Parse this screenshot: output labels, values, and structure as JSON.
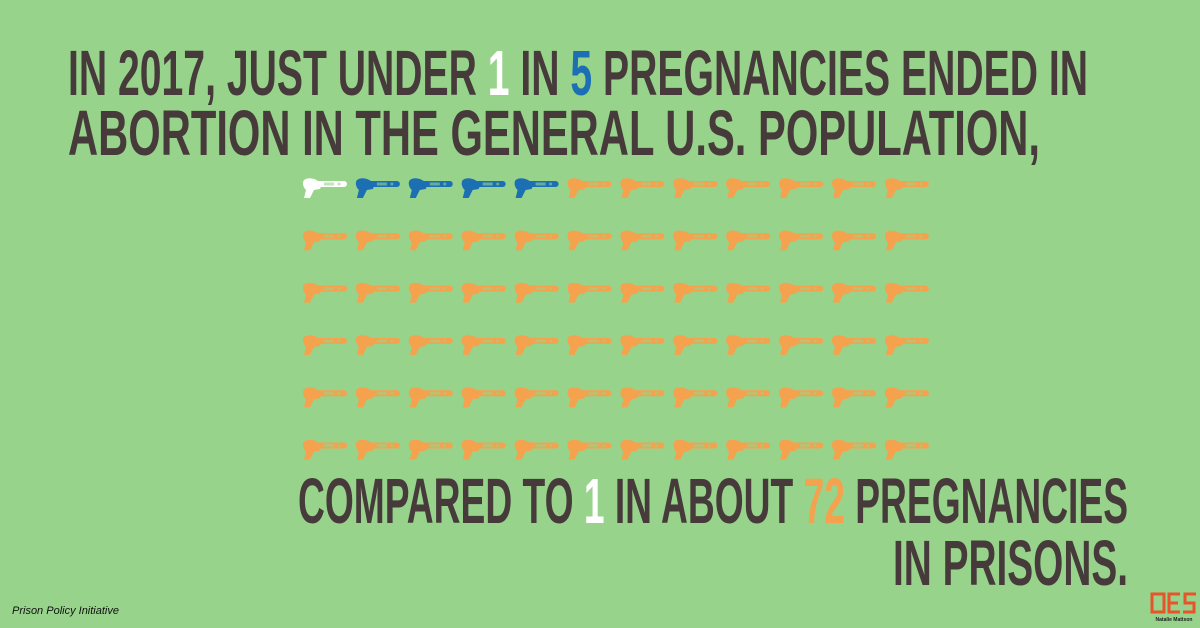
{
  "headline": {
    "line1": [
      "IN 2017, JUST UNDER ",
      "1",
      " IN ",
      "5",
      " PREGNANCIES ENDED IN"
    ],
    "line2": "ABORTION IN THE GENERAL U.S. POPULATION,"
  },
  "comparison": {
    "line1": [
      "COMPARED TO ",
      "1",
      " IN ABOUT ",
      "72",
      " PREGNANCIES"
    ],
    "line2": "IN PRISONS."
  },
  "source": "Prison Policy Initiative",
  "credit": "Natalie Mattson"
}
